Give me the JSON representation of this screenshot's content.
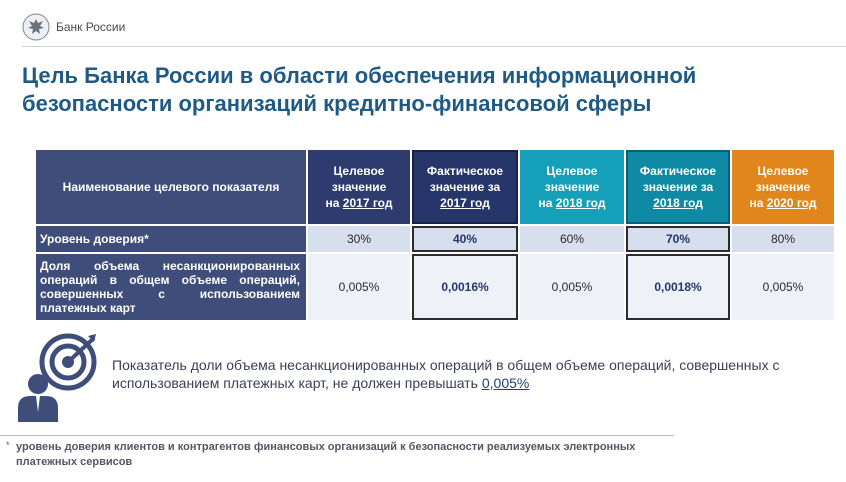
{
  "header": {
    "brand": "Банк России",
    "logo_icon": "eagle-emblem-icon"
  },
  "title": "Цель Банка России в области обеспечения информационной безопасности организаций кредитно-финансовой сферы",
  "table": {
    "headers": {
      "name": "Наименование целевого показателя",
      "target_2017": {
        "line1": "Целевое",
        "line2": "значение",
        "prefix": "на ",
        "year": "2017 год"
      },
      "fact_2017": {
        "line1": "Фактическое",
        "line2": "значение за",
        "year": "2017 год"
      },
      "target_2018": {
        "line1": "Целевое",
        "line2": "значение",
        "prefix": "на ",
        "year": "2018 год"
      },
      "fact_2018": {
        "line1": "Фактическое",
        "line2": "значение за",
        "year": "2018 год"
      },
      "target_2020": {
        "line1": "Целевое",
        "line2": "значение",
        "prefix": "на ",
        "year": "2020 год"
      }
    },
    "rows": [
      {
        "label": "Уровень доверия*",
        "values": [
          "30%",
          "40%",
          "60%",
          "70%",
          "80%"
        ]
      },
      {
        "label": "Доля объема несанкционированных операций в общем объеме операций, совершенных с использованием платежных карт",
        "values": [
          "0,005%",
          "0,0016%",
          "0,005%",
          "0,0018%",
          "0,005%"
        ]
      }
    ]
  },
  "note": {
    "line1": "Показатель доли объема несанкционированных операций в общем объеме операций, совершенных с",
    "line2": "использованием платежных карт, не должен превышать",
    "value": "0,005%"
  },
  "footnote": {
    "bullet": "*",
    "text": "уровень доверия клиентов и контрагентов финансовых организаций к безопасности реализуемых электронных платежных сервисов"
  },
  "colors": {
    "title": "#1f5a85",
    "navy": "#2e3b6e",
    "teal": "#159fb8",
    "orange": "#e1861d"
  }
}
